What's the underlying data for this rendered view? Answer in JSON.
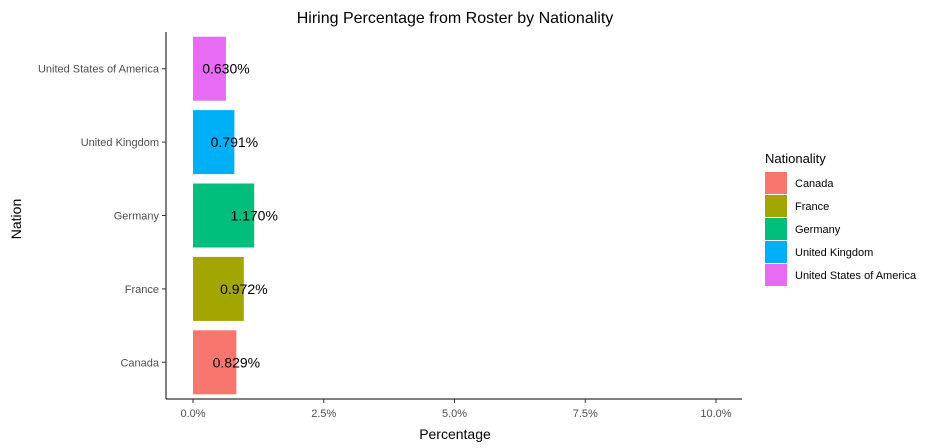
{
  "chart_data": {
    "type": "bar",
    "orientation": "horizontal",
    "title": "Hiring Percentage from Roster by Nationality",
    "xlabel": "Percentage",
    "ylabel": "Nation",
    "xlim": [
      0,
      0.105
    ],
    "x_ticks": [
      0.0,
      0.025,
      0.05,
      0.075,
      0.1
    ],
    "x_tick_labels": [
      "0.0%",
      "2.5%",
      "5.0%",
      "7.5%",
      "10.0%"
    ],
    "categories": [
      "Canada",
      "France",
      "Germany",
      "United Kingdom",
      "United States of America"
    ],
    "values": [
      0.00829,
      0.00972,
      0.0117,
      0.00791,
      0.0063
    ],
    "value_labels": [
      "0.829%",
      "0.972%",
      "1.170%",
      "0.791%",
      "0.630%"
    ],
    "colors": [
      "#F8766D",
      "#A3A500",
      "#00BF7D",
      "#00B0F6",
      "#E76BF3"
    ],
    "grid": false,
    "legend": {
      "title": "Nationality",
      "placement": "right",
      "entries": [
        "Canada",
        "France",
        "Germany",
        "United Kingdom",
        "United States of America"
      ]
    }
  }
}
